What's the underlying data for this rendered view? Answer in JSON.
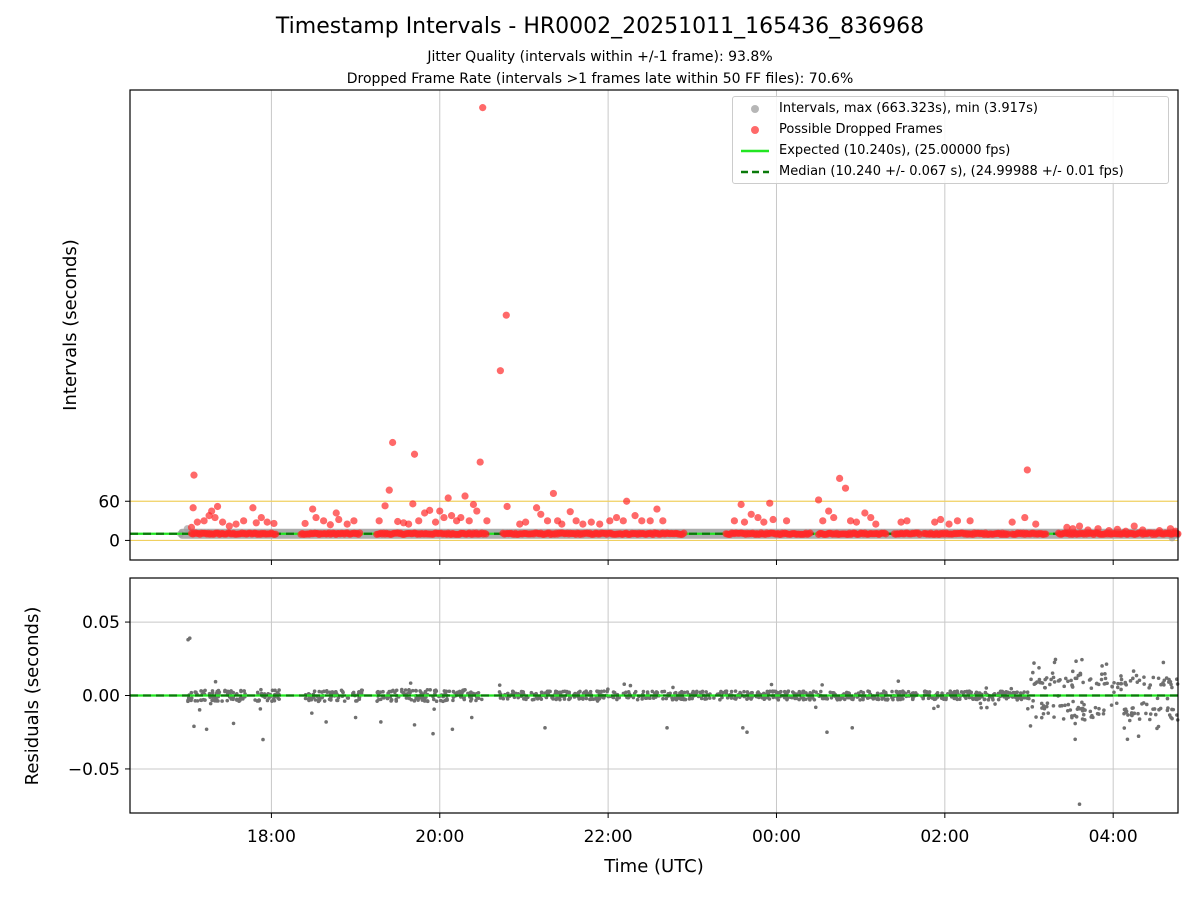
{
  "title": "Timestamp Intervals - HR0002_20251011_165436_836968",
  "subtitle_jitter": "Jitter Quality (intervals within +/-1 frame): 93.8%",
  "subtitle_dropped": "Dropped Frame Rate (intervals >1 frames late within 50 FF files): 70.6%",
  "colors": {
    "intervals": "#9e9e9e",
    "dropped": "#ff2a2a",
    "expected": "#22e622",
    "median": "#0a7a0a",
    "threshold": "#f0d060",
    "residuals": "#707070",
    "grid": "#c8c8c8"
  },
  "chart_data": [
    {
      "type": "scatter",
      "panel": "top",
      "ylabel": "Intervals (seconds)",
      "xlabel": "",
      "x_unit": "hours since 00:00 UTC (negative = previous day)",
      "xlim": [
        -7.68,
        4.77
      ],
      "ylim": [
        -30,
        690
      ],
      "ytick_values": [
        0,
        60
      ],
      "ytick_labels": [
        "0",
        "60"
      ],
      "xtick_values": [
        -6,
        -4,
        -2,
        0,
        2,
        4
      ],
      "xtick_labels": [
        "18:00",
        "20:00",
        "22:00",
        "00:00",
        "02:00",
        "04:00"
      ],
      "threshold_lines": [
        0,
        60
      ],
      "expected_interval": 10.24,
      "median_interval": 10.24,
      "legend": {
        "placement": "top-right",
        "entries": [
          "Intervals, max (663.323s), min (3.917s)",
          "Possible Dropped Frames",
          "Expected (10.240s), (25.00000 fps)",
          "Median (10.240 +/- 0.067 s), (24.99988 +/- 0.01 fps)"
        ]
      },
      "baseline_band": {
        "segments": [
          [
            -7.1,
            4.77
          ]
        ],
        "value": 10.24
      },
      "dropped_points": [
        {
          "x": -6.95,
          "y": 20
        },
        {
          "x": -6.92,
          "y": 100
        },
        {
          "x": -6.93,
          "y": 50
        },
        {
          "x": -6.88,
          "y": 28
        },
        {
          "x": -6.8,
          "y": 30
        },
        {
          "x": -6.74,
          "y": 38
        },
        {
          "x": -6.71,
          "y": 45
        },
        {
          "x": -6.67,
          "y": 35
        },
        {
          "x": -6.64,
          "y": 52
        },
        {
          "x": -6.58,
          "y": 28
        },
        {
          "x": -6.5,
          "y": 22
        },
        {
          "x": -6.42,
          "y": 25
        },
        {
          "x": -6.33,
          "y": 30
        },
        {
          "x": -6.22,
          "y": 50
        },
        {
          "x": -6.18,
          "y": 27
        },
        {
          "x": -6.12,
          "y": 35
        },
        {
          "x": -6.05,
          "y": 28
        },
        {
          "x": -5.97,
          "y": 26
        },
        {
          "x": -5.6,
          "y": 26
        },
        {
          "x": -5.51,
          "y": 48
        },
        {
          "x": -5.47,
          "y": 35
        },
        {
          "x": -5.38,
          "y": 30
        },
        {
          "x": -5.3,
          "y": 24
        },
        {
          "x": -5.23,
          "y": 42
        },
        {
          "x": -5.2,
          "y": 32
        },
        {
          "x": -5.1,
          "y": 25
        },
        {
          "x": -5.02,
          "y": 30
        },
        {
          "x": -4.72,
          "y": 30
        },
        {
          "x": -4.65,
          "y": 53
        },
        {
          "x": -4.6,
          "y": 77
        },
        {
          "x": -4.56,
          "y": 150
        },
        {
          "x": -4.5,
          "y": 29
        },
        {
          "x": -4.43,
          "y": 27
        },
        {
          "x": -4.37,
          "y": 25
        },
        {
          "x": -4.32,
          "y": 56
        },
        {
          "x": -4.3,
          "y": 132
        },
        {
          "x": -4.25,
          "y": 30
        },
        {
          "x": -4.18,
          "y": 42
        },
        {
          "x": -4.12,
          "y": 46
        },
        {
          "x": -4.05,
          "y": 28
        },
        {
          "x": -4.0,
          "y": 45
        },
        {
          "x": -3.95,
          "y": 35
        },
        {
          "x": -3.9,
          "y": 65
        },
        {
          "x": -3.86,
          "y": 38
        },
        {
          "x": -3.8,
          "y": 30
        },
        {
          "x": -3.75,
          "y": 35
        },
        {
          "x": -3.7,
          "y": 68
        },
        {
          "x": -3.65,
          "y": 30
        },
        {
          "x": -3.6,
          "y": 55
        },
        {
          "x": -3.56,
          "y": 45
        },
        {
          "x": -3.52,
          "y": 120
        },
        {
          "x": -3.49,
          "y": 663
        },
        {
          "x": -3.44,
          "y": 30
        },
        {
          "x": -3.28,
          "y": 260
        },
        {
          "x": -3.2,
          "y": 52
        },
        {
          "x": -3.21,
          "y": 345
        },
        {
          "x": -3.05,
          "y": 25
        },
        {
          "x": -2.98,
          "y": 28
        },
        {
          "x": -2.85,
          "y": 50
        },
        {
          "x": -2.8,
          "y": 40
        },
        {
          "x": -2.72,
          "y": 30
        },
        {
          "x": -2.65,
          "y": 72
        },
        {
          "x": -2.6,
          "y": 30
        },
        {
          "x": -2.55,
          "y": 25
        },
        {
          "x": -2.45,
          "y": 44
        },
        {
          "x": -2.38,
          "y": 30
        },
        {
          "x": -2.3,
          "y": 25
        },
        {
          "x": -2.2,
          "y": 28
        },
        {
          "x": -2.1,
          "y": 25
        },
        {
          "x": -1.98,
          "y": 30
        },
        {
          "x": -1.9,
          "y": 35
        },
        {
          "x": -1.82,
          "y": 30
        },
        {
          "x": -1.78,
          "y": 60
        },
        {
          "x": -1.68,
          "y": 38
        },
        {
          "x": -1.6,
          "y": 30
        },
        {
          "x": -1.5,
          "y": 30
        },
        {
          "x": -1.42,
          "y": 48
        },
        {
          "x": -1.35,
          "y": 30
        },
        {
          "x": -0.5,
          "y": 30
        },
        {
          "x": -0.42,
          "y": 55
        },
        {
          "x": -0.38,
          "y": 28
        },
        {
          "x": -0.3,
          "y": 40
        },
        {
          "x": -0.22,
          "y": 35
        },
        {
          "x": -0.15,
          "y": 28
        },
        {
          "x": -0.08,
          "y": 57
        },
        {
          "x": -0.04,
          "y": 32
        },
        {
          "x": 0.12,
          "y": 30
        },
        {
          "x": 0.5,
          "y": 62
        },
        {
          "x": 0.55,
          "y": 30
        },
        {
          "x": 0.62,
          "y": 45
        },
        {
          "x": 0.68,
          "y": 35
        },
        {
          "x": 0.75,
          "y": 95
        },
        {
          "x": 0.82,
          "y": 80
        },
        {
          "x": 0.88,
          "y": 30
        },
        {
          "x": 0.95,
          "y": 28
        },
        {
          "x": 1.05,
          "y": 42
        },
        {
          "x": 1.12,
          "y": 35
        },
        {
          "x": 1.18,
          "y": 25
        },
        {
          "x": 1.48,
          "y": 28
        },
        {
          "x": 1.55,
          "y": 30
        },
        {
          "x": 1.88,
          "y": 28
        },
        {
          "x": 1.95,
          "y": 32
        },
        {
          "x": 2.05,
          "y": 25
        },
        {
          "x": 2.15,
          "y": 30
        },
        {
          "x": 2.3,
          "y": 30
        },
        {
          "x": 2.8,
          "y": 28
        },
        {
          "x": 2.95,
          "y": 35
        },
        {
          "x": 2.98,
          "y": 108
        },
        {
          "x": 3.08,
          "y": 25
        },
        {
          "x": 3.45,
          "y": 20
        },
        {
          "x": 3.52,
          "y": 18
        },
        {
          "x": 3.6,
          "y": 22
        },
        {
          "x": 3.7,
          "y": 16
        },
        {
          "x": 3.82,
          "y": 18
        },
        {
          "x": 3.95,
          "y": 15
        },
        {
          "x": 4.05,
          "y": 17
        },
        {
          "x": 4.15,
          "y": 14
        },
        {
          "x": 4.25,
          "y": 22
        },
        {
          "x": 4.35,
          "y": 16
        },
        {
          "x": 4.55,
          "y": 15
        },
        {
          "x": 4.68,
          "y": 18
        },
        {
          "x": 4.74,
          "y": 14
        }
      ],
      "dropped_clusters": [
        [
          -6.95,
          -5.95
        ],
        [
          -5.65,
          -4.95
        ],
        [
          -4.75,
          -3.45
        ],
        [
          -3.25,
          -1.1
        ],
        [
          -0.6,
          0.4
        ],
        [
          0.5,
          1.3
        ],
        [
          1.4,
          1.7
        ],
        [
          1.75,
          2.75
        ],
        [
          2.8,
          3.2
        ],
        [
          3.35,
          4.77
        ]
      ]
    },
    {
      "type": "scatter",
      "panel": "bottom",
      "ylabel": "Residuals (seconds)",
      "xlabel": "Time (UTC)",
      "xlim": [
        -7.68,
        4.77
      ],
      "ylim": [
        -0.08,
        0.08
      ],
      "ytick_values": [
        0.05,
        0.0,
        -0.05
      ],
      "ytick_labels": [
        "0.05",
        "0.00",
        "−0.05"
      ],
      "xtick_values": [
        -6,
        -4,
        -2,
        0,
        2,
        4
      ],
      "xtick_labels": [
        "18:00",
        "20:00",
        "22:00",
        "00:00",
        "02:00",
        "04:00"
      ],
      "zero_line": 0.0,
      "residual_segments": [
        {
          "x": [
            -7.0,
            -6.3
          ],
          "spread": 0.004
        },
        {
          "x": [
            -6.2,
            -5.9
          ],
          "spread": 0.004
        },
        {
          "x": [
            -5.6,
            -4.9
          ],
          "spread": 0.004
        },
        {
          "x": [
            -4.75,
            -3.5
          ],
          "spread": 0.004
        },
        {
          "x": [
            -3.3,
            3.0
          ],
          "spread": 0.003
        },
        {
          "x": [
            3.0,
            4.77
          ],
          "spread": 0.012
        }
      ],
      "outliers": [
        {
          "x": -6.97,
          "y": 0.039
        },
        {
          "x": -6.99,
          "y": 0.038
        },
        {
          "x": -6.92,
          "y": -0.021
        },
        {
          "x": -6.77,
          "y": -0.023
        },
        {
          "x": -6.45,
          "y": -0.019
        },
        {
          "x": -6.1,
          "y": -0.03
        },
        {
          "x": -5.52,
          "y": -0.012
        },
        {
          "x": -5.35,
          "y": -0.018
        },
        {
          "x": -5.0,
          "y": -0.015
        },
        {
          "x": -4.7,
          "y": -0.018
        },
        {
          "x": -4.3,
          "y": -0.02
        },
        {
          "x": -4.08,
          "y": -0.026
        },
        {
          "x": -3.85,
          "y": -0.023
        },
        {
          "x": -3.62,
          "y": -0.015
        },
        {
          "x": -2.75,
          "y": -0.022
        },
        {
          "x": -1.3,
          "y": -0.022
        },
        {
          "x": -0.4,
          "y": -0.022
        },
        {
          "x": -0.35,
          "y": -0.025
        },
        {
          "x": 0.6,
          "y": -0.025
        },
        {
          "x": 0.9,
          "y": -0.022
        },
        {
          "x": 3.6,
          "y": -0.074
        }
      ]
    }
  ]
}
